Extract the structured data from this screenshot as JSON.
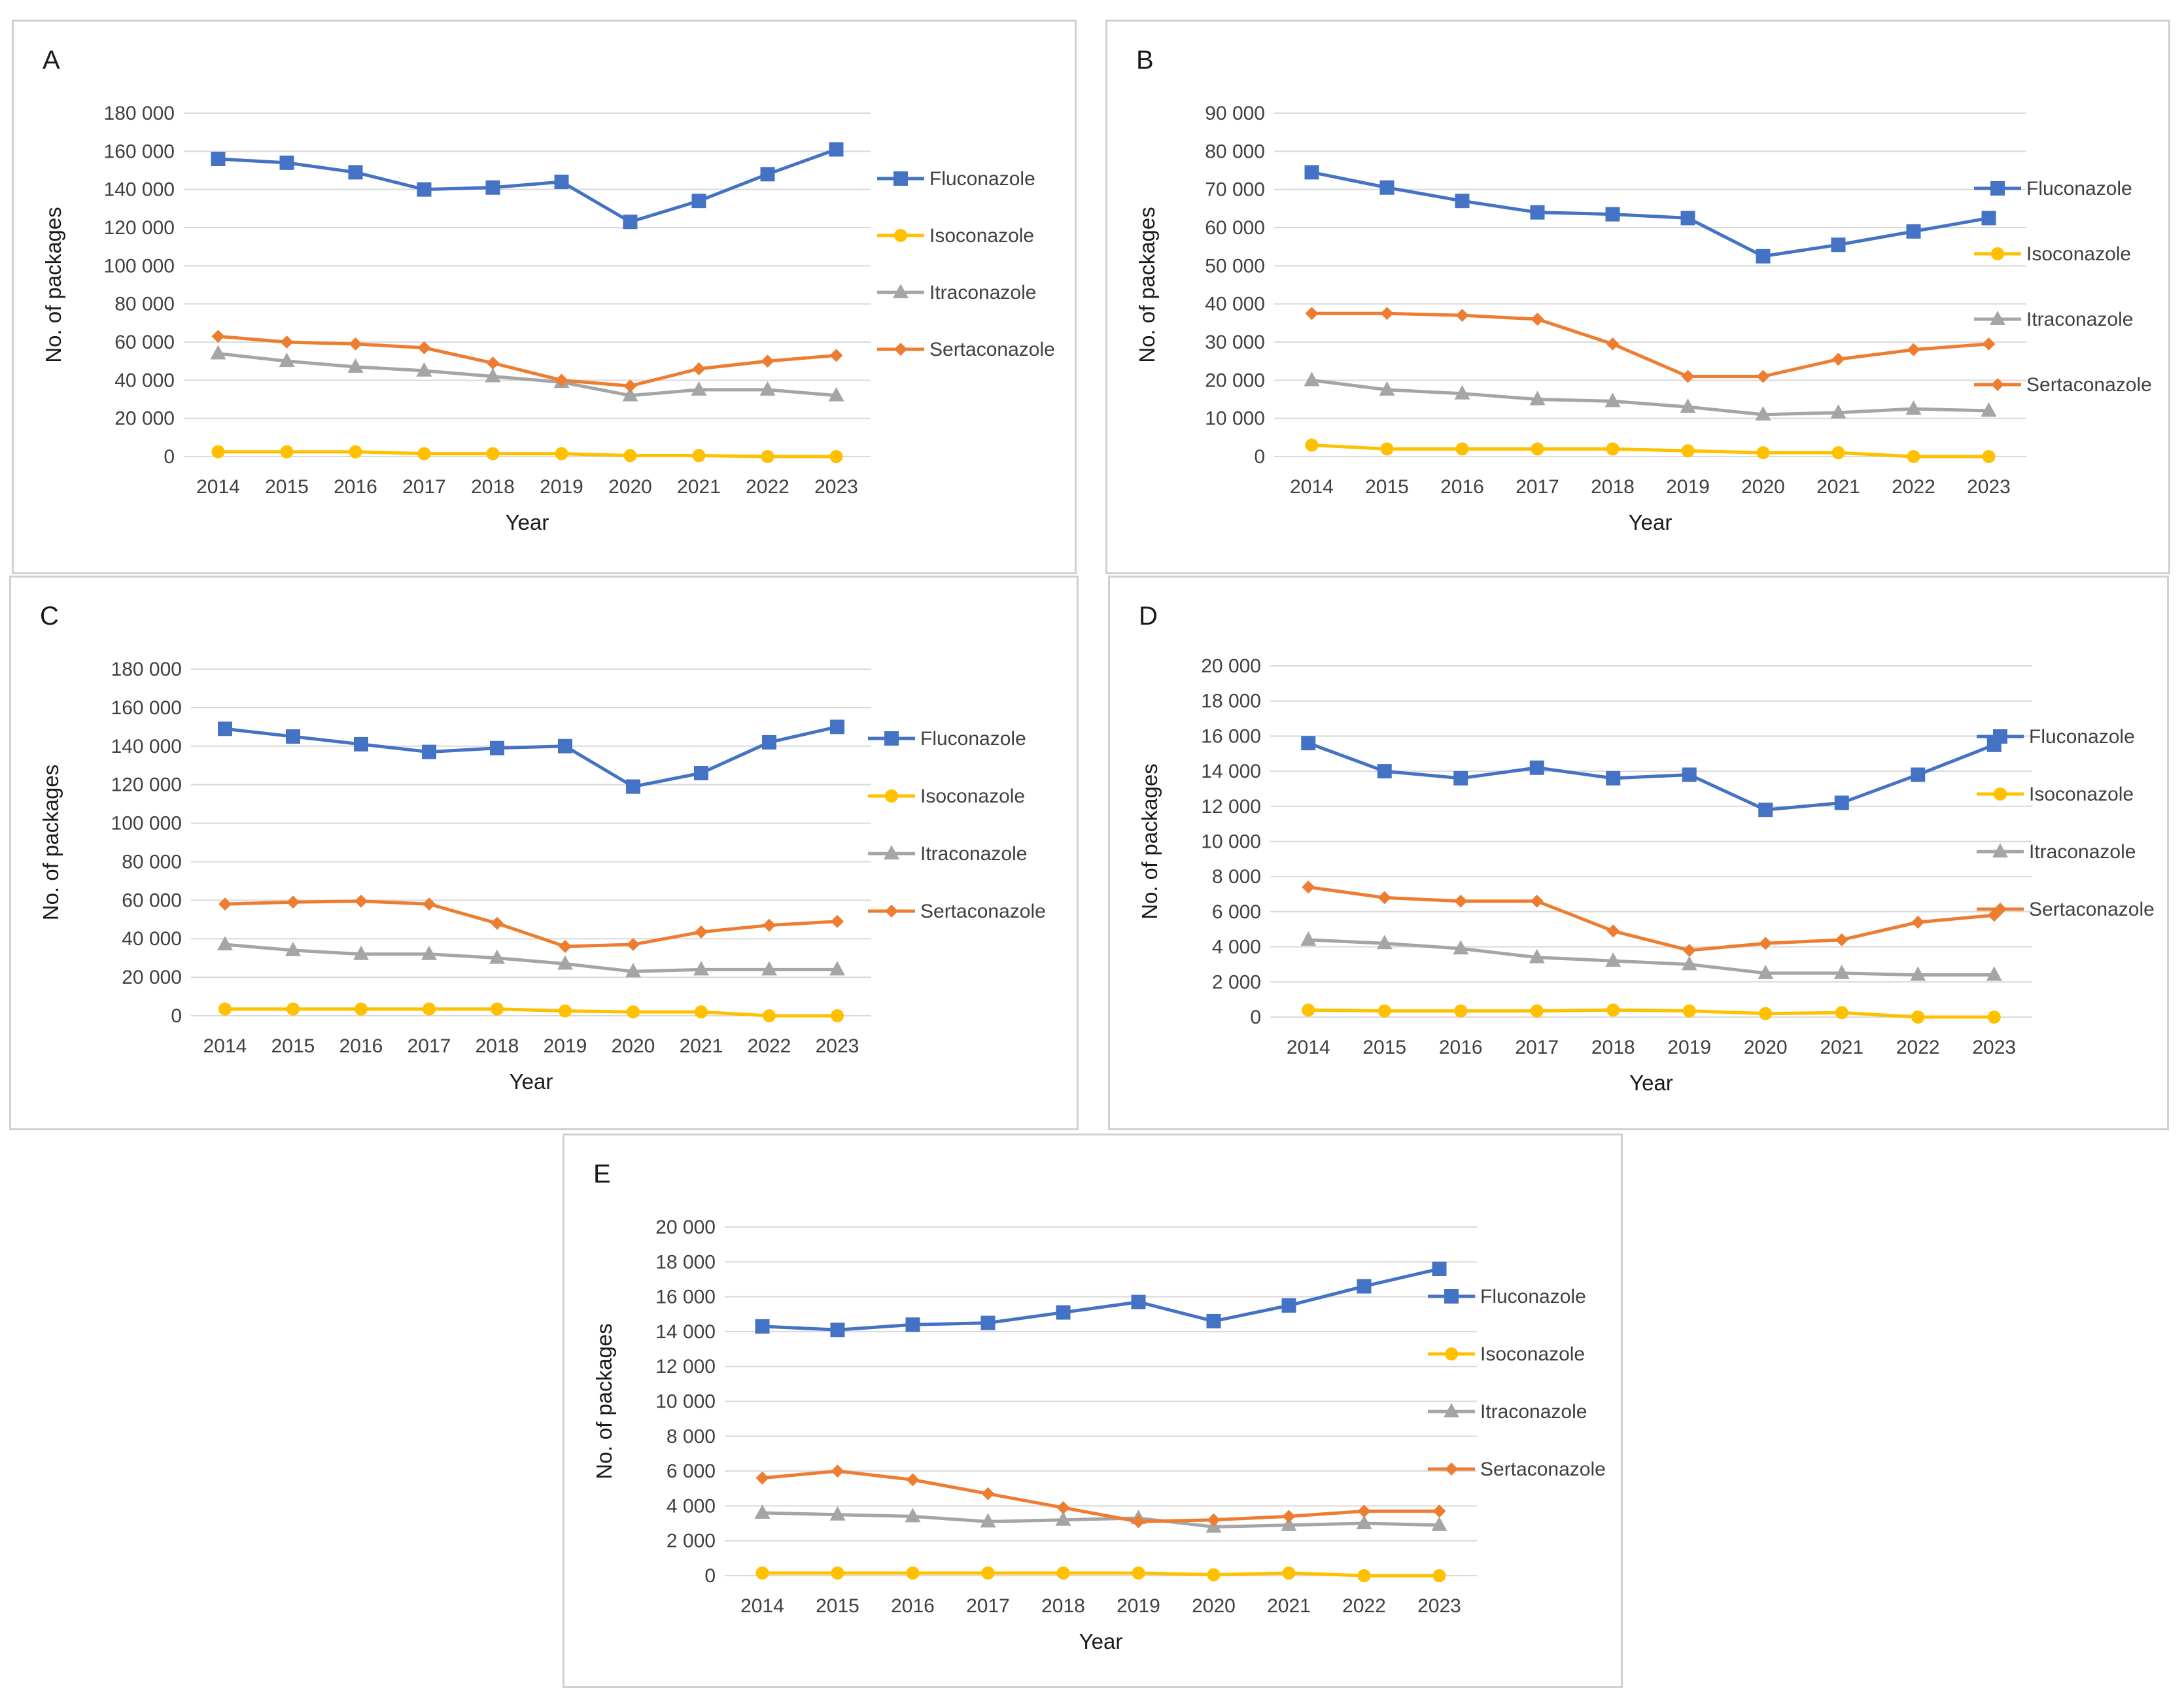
{
  "colors": {
    "Fluconazole": "#4472c4",
    "Isoconazole": "#ffc000",
    "Itraconazole": "#a5a5a5",
    "Sertaconazole": "#ed7d31"
  },
  "markers": {
    "Fluconazole": "square",
    "Isoconazole": "circle",
    "Itraconazole": "triangle",
    "Sertaconazole": "diamond"
  },
  "chart_data": [
    {
      "panel": "A",
      "type": "line",
      "xlabel": "Year",
      "ylabel": "No. of packages",
      "ylim": [
        0,
        180000
      ],
      "ystep": 20000,
      "ytick_labels": [
        "0",
        "20 000",
        "40 000",
        "60 000",
        "80 000",
        "100 000",
        "120 000",
        "140 000",
        "160 000",
        "180 000"
      ],
      "categories": [
        "2014",
        "2015",
        "2016",
        "2017",
        "2018",
        "2019",
        "2020",
        "2021",
        "2022",
        "2023"
      ],
      "series": [
        {
          "name": "Fluconazole",
          "values": [
            156000,
            154000,
            149000,
            140000,
            141000,
            144000,
            123000,
            134000,
            148000,
            161000
          ]
        },
        {
          "name": "Isoconazole",
          "values": [
            2500,
            2500,
            2500,
            1500,
            1500,
            1500,
            500,
            500,
            0,
            0
          ]
        },
        {
          "name": "Itraconazole",
          "values": [
            54000,
            50000,
            47000,
            45000,
            42000,
            39000,
            32000,
            35000,
            35000,
            32000
          ]
        },
        {
          "name": "Sertaconazole",
          "values": [
            63000,
            60000,
            59000,
            57000,
            49000,
            40000,
            37000,
            46000,
            50000,
            53000
          ]
        }
      ]
    },
    {
      "panel": "B",
      "type": "line",
      "xlabel": "Year",
      "ylabel": "No. of packages",
      "ylim": [
        0,
        90000
      ],
      "ystep": 10000,
      "ytick_labels": [
        "0",
        "10 000",
        "20 000",
        "30 000",
        "40 000",
        "50 000",
        "60 000",
        "70 000",
        "80 000",
        "90 000"
      ],
      "categories": [
        "2014",
        "2015",
        "2016",
        "2017",
        "2018",
        "2019",
        "2020",
        "2021",
        "2022",
        "2023"
      ],
      "series": [
        {
          "name": "Fluconazole",
          "values": [
            74500,
            70500,
            67000,
            64000,
            63500,
            62500,
            52500,
            55500,
            59000,
            62500
          ]
        },
        {
          "name": "Isoconazole",
          "values": [
            3000,
            2000,
            2000,
            2000,
            2000,
            1500,
            1000,
            1000,
            0,
            0
          ]
        },
        {
          "name": "Itraconazole",
          "values": [
            20000,
            17500,
            16500,
            15000,
            14500,
            13000,
            11000,
            11500,
            12500,
            12000
          ]
        },
        {
          "name": "Sertaconazole",
          "values": [
            37500,
            37500,
            37000,
            36000,
            29500,
            21000,
            21000,
            25500,
            28000,
            29500
          ]
        }
      ]
    },
    {
      "panel": "C",
      "type": "line",
      "xlabel": "Year",
      "ylabel": "No. of packages",
      "ylim": [
        0,
        180000
      ],
      "ystep": 20000,
      "ytick_labels": [
        "0",
        "20 000",
        "40 000",
        "60 000",
        "80 000",
        "100 000",
        "120 000",
        "140 000",
        "160 000",
        "180 000"
      ],
      "categories": [
        "2014",
        "2015",
        "2016",
        "2017",
        "2018",
        "2019",
        "2020",
        "2021",
        "2022",
        "2023"
      ],
      "series": [
        {
          "name": "Fluconazole",
          "values": [
            149000,
            145000,
            141000,
            137000,
            139000,
            140000,
            119000,
            126000,
            142000,
            150000
          ]
        },
        {
          "name": "Isoconazole",
          "values": [
            3500,
            3500,
            3500,
            3500,
            3500,
            2500,
            2000,
            2000,
            0,
            0
          ]
        },
        {
          "name": "Itraconazole",
          "values": [
            37000,
            34000,
            32000,
            32000,
            30000,
            27000,
            23000,
            24000,
            24000,
            24000
          ]
        },
        {
          "name": "Sertaconazole",
          "values": [
            58000,
            59000,
            59500,
            58000,
            48000,
            36000,
            37000,
            43500,
            47000,
            49000
          ]
        }
      ]
    },
    {
      "panel": "D",
      "type": "line",
      "xlabel": "Year",
      "ylabel": "No. of packages",
      "ylim": [
        0,
        20000
      ],
      "ystep": 2000,
      "ytick_labels": [
        "0",
        "2 000",
        "4 000",
        "6 000",
        "8 000",
        "10 000",
        "12 000",
        "14 000",
        "16 000",
        "18 000",
        "20 000"
      ],
      "categories": [
        "2014",
        "2015",
        "2016",
        "2017",
        "2018",
        "2019",
        "2020",
        "2021",
        "2022",
        "2023"
      ],
      "series": [
        {
          "name": "Fluconazole",
          "values": [
            15600,
            14000,
            13600,
            14200,
            13600,
            13800,
            11800,
            12200,
            13800,
            15500
          ]
        },
        {
          "name": "Isoconazole",
          "values": [
            400,
            350,
            350,
            350,
            400,
            350,
            200,
            250,
            0,
            0
          ]
        },
        {
          "name": "Itraconazole",
          "values": [
            4400,
            4200,
            3900,
            3400,
            3200,
            3000,
            2500,
            2500,
            2400,
            2400
          ]
        },
        {
          "name": "Sertaconazole",
          "values": [
            7400,
            6800,
            6600,
            6600,
            4900,
            3800,
            4200,
            4400,
            5400,
            5800
          ]
        }
      ]
    },
    {
      "panel": "E",
      "type": "line",
      "xlabel": "Year",
      "ylabel": "No. of packages",
      "ylim": [
        0,
        20000
      ],
      "ystep": 2000,
      "ytick_labels": [
        "0",
        "2 000",
        "4 000",
        "6 000",
        "8 000",
        "10 000",
        "12 000",
        "14 000",
        "16 000",
        "18 000",
        "20 000"
      ],
      "categories": [
        "2014",
        "2015",
        "2016",
        "2017",
        "2018",
        "2019",
        "2020",
        "2021",
        "2022",
        "2023"
      ],
      "series": [
        {
          "name": "Fluconazole",
          "values": [
            14300,
            14100,
            14400,
            14500,
            15100,
            15700,
            14600,
            15500,
            16600,
            17600
          ]
        },
        {
          "name": "Isoconazole",
          "values": [
            150,
            150,
            150,
            150,
            150,
            150,
            50,
            150,
            0,
            0
          ]
        },
        {
          "name": "Itraconazole",
          "values": [
            3600,
            3500,
            3400,
            3100,
            3200,
            3300,
            2800,
            2900,
            3000,
            2900
          ]
        },
        {
          "name": "Sertaconazole",
          "values": [
            5600,
            6000,
            5500,
            4700,
            3900,
            3100,
            3200,
            3400,
            3700,
            3700
          ]
        }
      ]
    }
  ]
}
